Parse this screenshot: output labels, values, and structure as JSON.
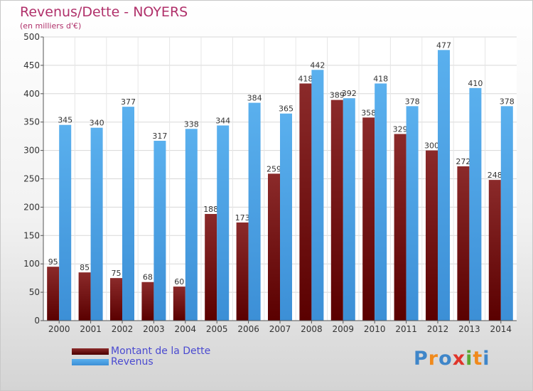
{
  "chart_data": {
    "type": "bar",
    "title": "Revenus/Dette - NOYERS",
    "subtitle": "(en milliers d'€)",
    "categories": [
      "2000",
      "2001",
      "2002",
      "2003",
      "2004",
      "2005",
      "2006",
      "2007",
      "2008",
      "2009",
      "2010",
      "2011",
      "2012",
      "2013",
      "2014"
    ],
    "series": [
      {
        "name": "Montant de la Dette",
        "color": "#7a1c1c",
        "values": [
          95,
          85,
          75,
          68,
          60,
          188,
          173,
          259,
          418,
          389,
          358,
          329,
          300,
          272,
          248
        ]
      },
      {
        "name": "Revenus",
        "color": "#4aa3e6",
        "values": [
          345,
          340,
          377,
          317,
          338,
          344,
          384,
          365,
          442,
          392,
          418,
          378,
          477,
          410,
          378
        ]
      }
    ],
    "ylim": [
      0,
      500
    ],
    "yticks": [
      0,
      50,
      100,
      150,
      200,
      250,
      300,
      350,
      400,
      450,
      500
    ],
    "grid": true,
    "legend_position": "bottom-left"
  },
  "brand": {
    "name": "Proxiti",
    "letters": [
      "P",
      "r",
      "o",
      "x",
      "i",
      "t",
      "i"
    ],
    "colors": [
      "#3f86c9",
      "#f08a1c",
      "#3f86c9",
      "#e0352b",
      "#5aa832",
      "#f08a1c",
      "#3f86c9"
    ]
  }
}
